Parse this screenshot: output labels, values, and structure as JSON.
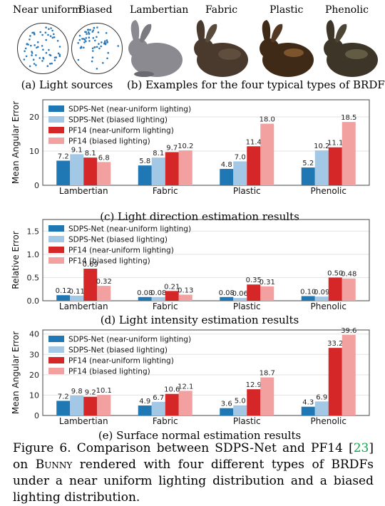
{
  "colors": {
    "sdps_near": "#1f77b4",
    "sdps_biased": "#a3c8e6",
    "pf14_near": "#d62728",
    "pf14_biased": "#f2a0a0",
    "bunny_lambertian": "#8a8a90",
    "bunny_fabric": "#4a3a2e",
    "bunny_plastic": "#3f2a18",
    "bunny_phenolic": "#3d3628",
    "citation": "#16a34a"
  },
  "top": {
    "light_labels": [
      "Near uniform",
      "Biased"
    ],
    "brdf_labels": [
      "Lambertian",
      "Fabric",
      "Plastic",
      "Phenolic"
    ],
    "caption_a": "(a) Light sources",
    "caption_b": "(b) Examples for the four typical types of BRDFs"
  },
  "chart_data": [
    {
      "type": "bar",
      "title": "",
      "ylabel": "Mean Angular Error",
      "ylim": [
        0,
        25
      ],
      "yticks": [
        "0",
        "10",
        "20"
      ],
      "categories": [
        "Lambertian",
        "Fabric",
        "Plastic",
        "Phenolic"
      ],
      "series": [
        {
          "name": "SDPS-Net (near-uniform lighting)",
          "values": [
            7.2,
            5.8,
            4.8,
            5.2
          ],
          "labels": [
            "7.2",
            "5.8",
            "4.8",
            "5.2"
          ]
        },
        {
          "name": "SDPS-Net (biased lighting)",
          "values": [
            9.1,
            8.1,
            7.0,
            10.2
          ],
          "labels": [
            "9.1",
            "8.1",
            "7.0",
            "10.2"
          ]
        },
        {
          "name": "PF14 (near-uniform lighting)",
          "values": [
            8.1,
            9.7,
            11.4,
            11.1
          ],
          "labels": [
            "8.1",
            "9.7",
            "11.4",
            "11.1"
          ]
        },
        {
          "name": "PF14 (biased lighting)",
          "values": [
            6.8,
            10.2,
            18.0,
            18.5
          ],
          "labels": [
            "6.8",
            "10.2",
            "18.0",
            "18.5"
          ]
        }
      ],
      "grid": true,
      "legend": "top-left",
      "caption": "(c) Light direction estimation results"
    },
    {
      "type": "bar",
      "title": "",
      "ylabel": "Relative Error",
      "ylim": [
        0,
        1.75
      ],
      "yticks": [
        "0.0",
        "0.5",
        "1.0",
        "1.5"
      ],
      "categories": [
        "Lambertian",
        "Fabric",
        "Plastic",
        "Phenolic"
      ],
      "series": [
        {
          "name": "SDPS-Net (near-uniform lighting)",
          "values": [
            0.12,
            0.08,
            0.08,
            0.1
          ],
          "labels": [
            "0.12",
            "0.08",
            "0.08",
            "0.10"
          ]
        },
        {
          "name": "SDPS-Net (biased lighting)",
          "values": [
            0.11,
            0.08,
            0.06,
            0.09
          ],
          "labels": [
            "0.11",
            "0.08",
            "0.06",
            "0.09"
          ]
        },
        {
          "name": "PF14 (near-uniform lighting)",
          "values": [
            0.69,
            0.21,
            0.35,
            0.5
          ],
          "labels": [
            "0.69",
            "0.21",
            "0.35",
            "0.50"
          ]
        },
        {
          "name": "PF14 (biased lighting)",
          "values": [
            0.32,
            0.13,
            0.31,
            0.48
          ],
          "labels": [
            "0.32",
            "0.13",
            "0.31",
            "0.48"
          ]
        }
      ],
      "grid": true,
      "legend": "top-left",
      "caption": "(d) Light intensity estimation results"
    },
    {
      "type": "bar",
      "title": "",
      "ylabel": "Mean Angular Error",
      "ylim": [
        0,
        42
      ],
      "yticks": [
        "0",
        "10",
        "20",
        "30",
        "40"
      ],
      "categories": [
        "Lambertian",
        "Fabric",
        "Plastic",
        "Phenolic"
      ],
      "series": [
        {
          "name": "SDPS-Net (near-uniform lighting)",
          "values": [
            7.2,
            4.9,
            3.6,
            4.3
          ],
          "labels": [
            "7.2",
            "4.9",
            "3.6",
            "4.3"
          ]
        },
        {
          "name": "SDPS-Net (biased lighting)",
          "values": [
            9.8,
            6.7,
            5.0,
            6.9
          ],
          "labels": [
            "9.8",
            "6.7",
            "5.0",
            "6.9"
          ]
        },
        {
          "name": "PF14 (near-uniform lighting)",
          "values": [
            9.2,
            10.6,
            12.9,
            33.2
          ],
          "labels": [
            "9.2",
            "10.6",
            "12.9",
            "33.2"
          ]
        },
        {
          "name": "PF14 (biased lighting)",
          "values": [
            10.1,
            12.1,
            18.7,
            39.6
          ],
          "labels": [
            "10.1",
            "12.1",
            "18.7",
            "39.6"
          ]
        }
      ],
      "grid": true,
      "legend": "top-left",
      "caption": "(e) Surface normal estimation results"
    }
  ],
  "figure_caption": {
    "prefix": "Figure 6.   Comparison between SDPS-Net and PF14 [",
    "ref": "23",
    "suffix_1": "] on ",
    "bunny_small_caps": "Bunny",
    "suffix_2": " rendered with four different types of BRDFs under a near uniform lighting distribution and a biased lighting distribution."
  }
}
